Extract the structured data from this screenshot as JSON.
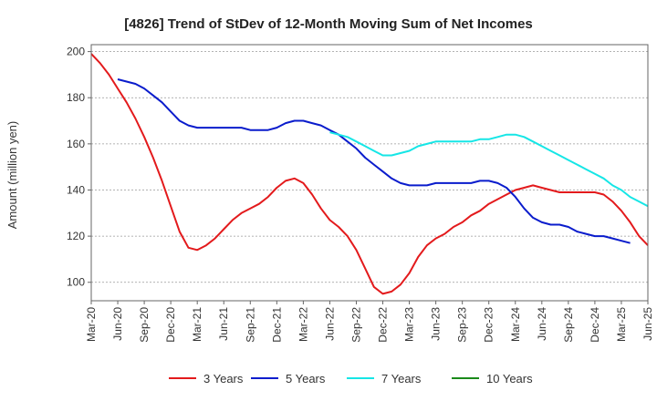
{
  "chart_data": {
    "type": "line",
    "title": "[4826]  Trend of StDev of 12-Month Moving Sum of Net Incomes",
    "xlabel": "",
    "ylabel": "Amount (million yen)",
    "ylim": [
      92,
      203
    ],
    "yticks": [
      100,
      120,
      140,
      160,
      180,
      200
    ],
    "grid": "horizontal dashed",
    "legend_position": "bottom",
    "x_tick_labels": [
      "Mar-20",
      "Jun-20",
      "Sep-20",
      "Dec-20",
      "Mar-21",
      "Jun-21",
      "Sep-21",
      "Dec-21",
      "Mar-22",
      "Jun-22",
      "Sep-22",
      "Dec-22",
      "Mar-23",
      "Jun-23",
      "Sep-23",
      "Dec-23",
      "Mar-24",
      "Jun-24",
      "Sep-24",
      "Dec-24",
      "Mar-25",
      "Jun-25"
    ],
    "x_unit": "month index from Mar-20",
    "series": [
      {
        "name": "3 Years",
        "color": "#e31a1c",
        "points": [
          [
            0,
            199
          ],
          [
            1,
            195
          ],
          [
            2,
            190
          ],
          [
            3,
            184
          ],
          [
            4,
            178
          ],
          [
            5,
            171
          ],
          [
            6,
            163
          ],
          [
            7,
            154
          ],
          [
            8,
            144
          ],
          [
            9,
            133
          ],
          [
            10,
            122
          ],
          [
            11,
            115
          ],
          [
            12,
            114
          ],
          [
            13,
            116
          ],
          [
            14,
            119
          ],
          [
            15,
            123
          ],
          [
            16,
            127
          ],
          [
            17,
            130
          ],
          [
            18,
            132
          ],
          [
            19,
            134
          ],
          [
            20,
            137
          ],
          [
            21,
            141
          ],
          [
            22,
            144
          ],
          [
            23,
            145
          ],
          [
            24,
            143
          ],
          [
            25,
            138
          ],
          [
            26,
            132
          ],
          [
            27,
            127
          ],
          [
            28,
            124
          ],
          [
            29,
            120
          ],
          [
            30,
            114
          ],
          [
            31,
            106
          ],
          [
            32,
            98
          ],
          [
            33,
            95
          ],
          [
            34,
            96
          ],
          [
            35,
            99
          ],
          [
            36,
            104
          ],
          [
            37,
            111
          ],
          [
            38,
            116
          ],
          [
            39,
            119
          ],
          [
            40,
            121
          ],
          [
            41,
            124
          ],
          [
            42,
            126
          ],
          [
            43,
            129
          ],
          [
            44,
            131
          ],
          [
            45,
            134
          ],
          [
            46,
            136
          ],
          [
            47,
            138
          ],
          [
            48,
            140
          ],
          [
            49,
            141
          ],
          [
            50,
            142
          ],
          [
            51,
            141
          ],
          [
            52,
            140
          ],
          [
            53,
            139
          ],
          [
            54,
            139
          ],
          [
            55,
            139
          ],
          [
            56,
            139
          ],
          [
            57,
            139
          ],
          [
            58,
            138
          ],
          [
            59,
            135
          ],
          [
            60,
            131
          ],
          [
            61,
            126
          ],
          [
            62,
            120
          ],
          [
            63,
            116
          ]
        ]
      },
      {
        "name": "5 Years",
        "color": "#0a1ccc",
        "points": [
          [
            3,
            188
          ],
          [
            4,
            187
          ],
          [
            5,
            186
          ],
          [
            6,
            184
          ],
          [
            7,
            181
          ],
          [
            8,
            178
          ],
          [
            9,
            174
          ],
          [
            10,
            170
          ],
          [
            11,
            168
          ],
          [
            12,
            167
          ],
          [
            13,
            167
          ],
          [
            14,
            167
          ],
          [
            15,
            167
          ],
          [
            16,
            167
          ],
          [
            17,
            167
          ],
          [
            18,
            166
          ],
          [
            19,
            166
          ],
          [
            20,
            166
          ],
          [
            21,
            167
          ],
          [
            22,
            169
          ],
          [
            23,
            170
          ],
          [
            24,
            170
          ],
          [
            25,
            169
          ],
          [
            26,
            168
          ],
          [
            27,
            166
          ],
          [
            28,
            164
          ],
          [
            29,
            161
          ],
          [
            30,
            158
          ],
          [
            31,
            154
          ],
          [
            32,
            151
          ],
          [
            33,
            148
          ],
          [
            34,
            145
          ],
          [
            35,
            143
          ],
          [
            36,
            142
          ],
          [
            37,
            142
          ],
          [
            38,
            142
          ],
          [
            39,
            143
          ],
          [
            40,
            143
          ],
          [
            41,
            143
          ],
          [
            42,
            143
          ],
          [
            43,
            143
          ],
          [
            44,
            144
          ],
          [
            45,
            144
          ],
          [
            46,
            143
          ],
          [
            47,
            141
          ],
          [
            48,
            137
          ],
          [
            49,
            132
          ],
          [
            50,
            128
          ],
          [
            51,
            126
          ],
          [
            52,
            125
          ],
          [
            53,
            125
          ],
          [
            54,
            124
          ],
          [
            55,
            122
          ],
          [
            56,
            121
          ],
          [
            57,
            120
          ],
          [
            58,
            120
          ],
          [
            59,
            119
          ],
          [
            60,
            118
          ],
          [
            61,
            117
          ]
        ]
      },
      {
        "name": "7 Years",
        "color": "#16e6e6",
        "points": [
          [
            27,
            165
          ],
          [
            28,
            164
          ],
          [
            29,
            163
          ],
          [
            30,
            161
          ],
          [
            31,
            159
          ],
          [
            32,
            157
          ],
          [
            33,
            155
          ],
          [
            34,
            155
          ],
          [
            35,
            156
          ],
          [
            36,
            157
          ],
          [
            37,
            159
          ],
          [
            38,
            160
          ],
          [
            39,
            161
          ],
          [
            40,
            161
          ],
          [
            41,
            161
          ],
          [
            42,
            161
          ],
          [
            43,
            161
          ],
          [
            44,
            162
          ],
          [
            45,
            162
          ],
          [
            46,
            163
          ],
          [
            47,
            164
          ],
          [
            48,
            164
          ],
          [
            49,
            163
          ],
          [
            50,
            161
          ],
          [
            51,
            159
          ],
          [
            52,
            157
          ],
          [
            53,
            155
          ],
          [
            54,
            153
          ],
          [
            55,
            151
          ],
          [
            56,
            149
          ],
          [
            57,
            147
          ],
          [
            58,
            145
          ],
          [
            59,
            142
          ],
          [
            60,
            140
          ],
          [
            61,
            137
          ],
          [
            62,
            135
          ],
          [
            63,
            133
          ]
        ]
      },
      {
        "name": "10 Years",
        "color": "#1a8a1a",
        "points": []
      }
    ]
  }
}
